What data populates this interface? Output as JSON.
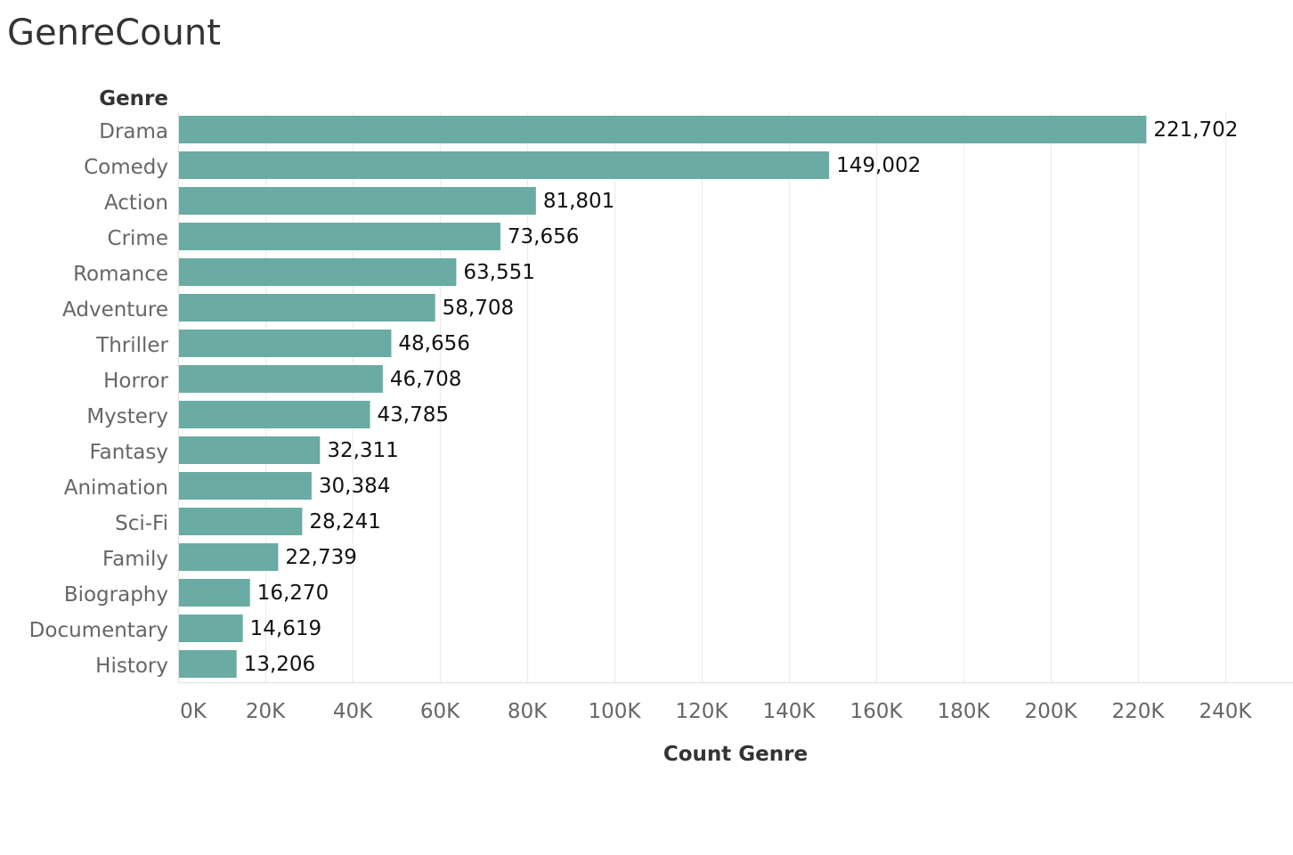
{
  "sheet": {
    "title": "GenreCount"
  },
  "colors": {
    "bar": "#6aaba3",
    "gridline": "#ececec",
    "axis_line": "#e2e2e2"
  },
  "chart_data": {
    "type": "bar",
    "orientation": "horizontal",
    "row_header": "Genre",
    "xlabel": "Count Genre",
    "ylabel": "Genre",
    "categories": [
      "Drama",
      "Comedy",
      "Action",
      "Crime",
      "Romance",
      "Adventure",
      "Thriller",
      "Horror",
      "Mystery",
      "Fantasy",
      "Animation",
      "Sci-Fi",
      "Family",
      "Biography",
      "Documentary",
      "History"
    ],
    "values": [
      221702,
      149002,
      81801,
      73656,
      63551,
      58708,
      48656,
      46708,
      43785,
      32311,
      30384,
      28241,
      22739,
      16270,
      14619,
      13206
    ],
    "value_labels": [
      "221,702",
      "149,002",
      "81,801",
      "73,656",
      "63,551",
      "58,708",
      "48,656",
      "46,708",
      "43,785",
      "32,311",
      "30,384",
      "28,241",
      "22,739",
      "16,270",
      "14,619",
      "13,206"
    ],
    "xlim": [
      0,
      255000
    ],
    "x_ticks": [
      0,
      20000,
      40000,
      60000,
      80000,
      100000,
      120000,
      140000,
      160000,
      180000,
      200000,
      220000,
      240000
    ],
    "x_tick_labels": [
      "0K",
      "20K",
      "40K",
      "60K",
      "80K",
      "100K",
      "120K",
      "140K",
      "160K",
      "180K",
      "200K",
      "220K",
      "240K"
    ],
    "grid": true,
    "legend": "none"
  }
}
